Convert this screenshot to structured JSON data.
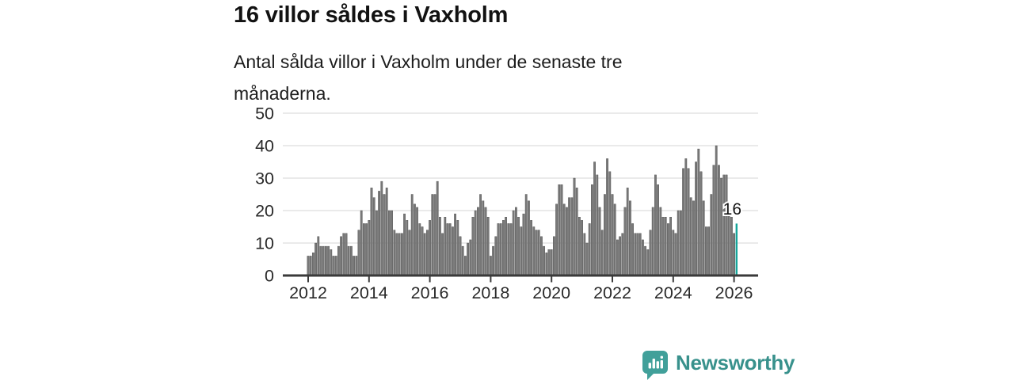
{
  "chart_data": {
    "type": "bar",
    "title": "16 villor såldes i Vaxholm",
    "subtitle": "Antal sålda villor i Vaxholm under de senaste tre månaderna.",
    "frequency": "monthly",
    "series_start": "2012-01",
    "series_end": "2026-02",
    "values": [
      6,
      6,
      7,
      10,
      12,
      9,
      9,
      9,
      9,
      8,
      6,
      6,
      9,
      12,
      13,
      13,
      9,
      9,
      6,
      6,
      14,
      20,
      16,
      16,
      17,
      27,
      24,
      20,
      26,
      29,
      25,
      27,
      20,
      20,
      14,
      13,
      13,
      13,
      19,
      17,
      14,
      25,
      22,
      21,
      16,
      15,
      13,
      14,
      17,
      25,
      25,
      29,
      18,
      13,
      18,
      16,
      16,
      15,
      19,
      17,
      12,
      9,
      6,
      10,
      11,
      18,
      20,
      21,
      25,
      23,
      21,
      18,
      6,
      9,
      12,
      16,
      16,
      17,
      18,
      16,
      16,
      20,
      21,
      18,
      15,
      19,
      25,
      23,
      17,
      15,
      14,
      14,
      12,
      9,
      7,
      8,
      8,
      12,
      22,
      28,
      28,
      22,
      21,
      24,
      24,
      30,
      27,
      18,
      17,
      13,
      10,
      16,
      28,
      35,
      31,
      21,
      14,
      25,
      36,
      32,
      25,
      22,
      11,
      12,
      13,
      21,
      27,
      23,
      16,
      13,
      13,
      13,
      11,
      9,
      8,
      14,
      21,
      31,
      28,
      21,
      18,
      18,
      16,
      18,
      14,
      13,
      20,
      20,
      33,
      36,
      33,
      24,
      23,
      35,
      39,
      32,
      23,
      15,
      15,
      25,
      34,
      40,
      34,
      30,
      31,
      31,
      22,
      18,
      13,
      16
    ],
    "highlight_last_value": 16,
    "annotation_label": "16",
    "x_tick_labels": [
      "2012",
      "2014",
      "2016",
      "2018",
      "2020",
      "2022",
      "2024",
      "2026"
    ],
    "y_ticks": [
      0,
      10,
      20,
      30,
      40,
      50
    ],
    "ylim": [
      0,
      50
    ],
    "grid": true,
    "legend": false,
    "colors": {
      "bar": "#787878",
      "bar_stroke": "#4e4e4e",
      "highlight": "#16a59a",
      "gridline": "#e3e3e3",
      "axis_line": "#3a3a3a",
      "tick_text": "#2a2a2a",
      "annotation_text": "#141414"
    }
  },
  "footer": {
    "brand_label": "Newsworthy",
    "brand_color": "#38918c",
    "logo_icon": "newsworthy-speech-bubble-bars",
    "logo_color": "#41a09a"
  }
}
